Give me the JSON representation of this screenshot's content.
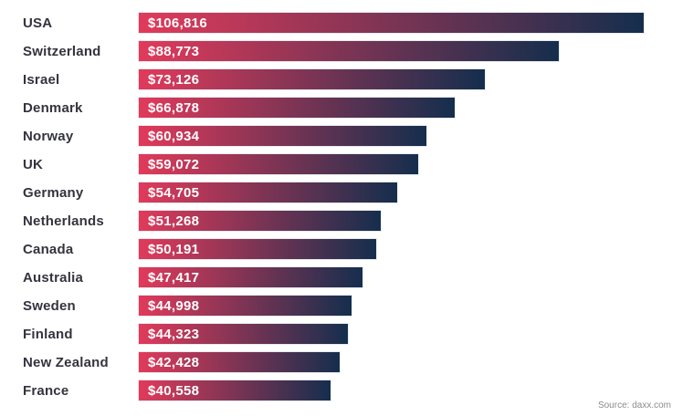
{
  "chart_data": {
    "type": "bar",
    "orientation": "horizontal",
    "title": "",
    "xlabel": "",
    "ylabel": "",
    "xlim": [
      0,
      106816
    ],
    "grid": false,
    "legend": false,
    "categories": [
      "USA",
      "Switzerland",
      "Israel",
      "Denmark",
      "Norway",
      "UK",
      "Germany",
      "Netherlands",
      "Canada",
      "Australia",
      "Sweden",
      "Finland",
      "New Zealand",
      "France"
    ],
    "values": [
      106816,
      88773,
      73126,
      66878,
      60934,
      59072,
      54705,
      51268,
      50191,
      47417,
      44998,
      44323,
      42428,
      40558
    ],
    "value_labels": [
      "$106,816",
      "$88,773",
      "$73,126",
      "$66,878",
      "$60,934",
      "$59,072",
      "$54,705",
      "$51,268",
      "$50,191",
      "$47,417",
      "$44,998",
      "$44,323",
      "$42,428",
      "$40,558"
    ],
    "colors": {
      "bar_gradient_start": "#e23a5b",
      "bar_gradient_end": "#152e4d",
      "category_label": "#33343e",
      "value_label": "#ffffff"
    }
  },
  "source": {
    "label": "Source: daxx.com"
  }
}
